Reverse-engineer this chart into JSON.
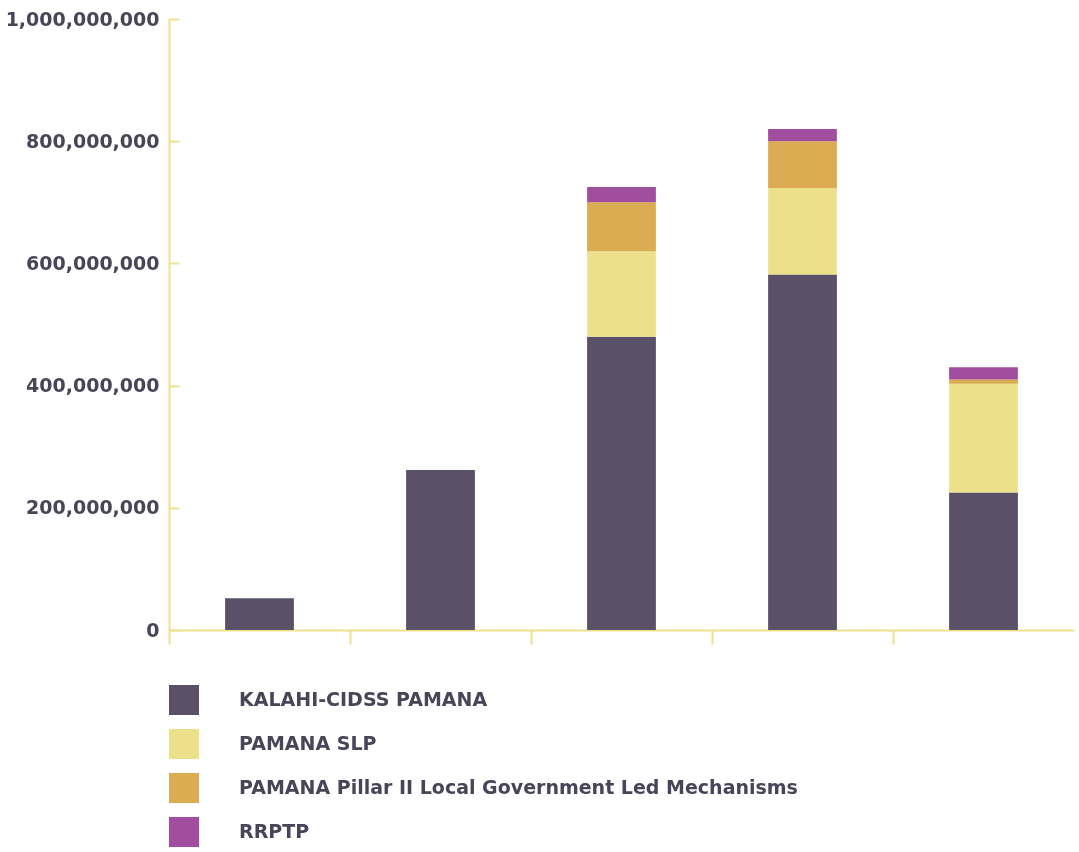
{
  "chart_data": {
    "type": "bar",
    "stacked": true,
    "categories": [
      null,
      null,
      null,
      null,
      null
    ],
    "series": [
      {
        "name": "KALAHI-CIDSS PAMANA",
        "color": "#5a5068",
        "values": [
          52000000,
          262000000,
          480000000,
          582000000,
          225000000
        ]
      },
      {
        "name": "PAMANA SLP",
        "color": "#ede08a",
        "values": [
          null,
          null,
          140000000,
          141000000,
          178000000
        ]
      },
      {
        "name": "PAMANA Pillar II Local Government  Led Mechanisms",
        "color": "#dcac52",
        "values": [
          null,
          null,
          80000000,
          77000000,
          7000000
        ]
      },
      {
        "name": "RRPTP",
        "color": "#a24e9e",
        "values": [
          null,
          null,
          25000000,
          20000000,
          20000000
        ]
      }
    ],
    "ylim": [
      0,
      1000000000
    ],
    "yticks": [
      0,
      {
        "value": 200000000,
        "label": "200,000,000"
      },
      {
        "value": 400000000,
        "label": "400,000,000"
      },
      {
        "value": 600000000,
        "label": "600,000,000"
      },
      {
        "value": 800000000,
        "label": "800,000,000"
      },
      {
        "value": 1000000000,
        "label": "1,000,000,000"
      }
    ],
    "grid": false,
    "legend": "bottom",
    "tick_labels": "y"
  }
}
